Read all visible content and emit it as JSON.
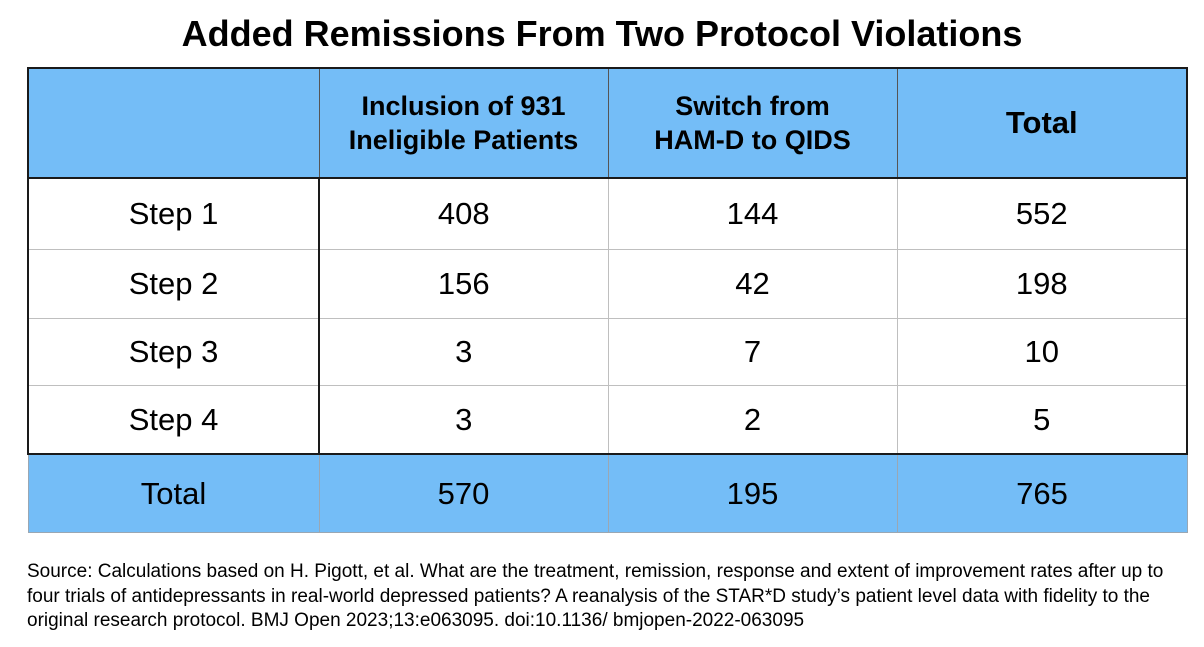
{
  "title": "Added Remissions From Two Protocol Violations",
  "chart_data": {
    "type": "table",
    "columns": [
      "",
      "Inclusion of 931 Ineligible Patients",
      "Switch from HAM-D to QIDS",
      "Total"
    ],
    "header_lines": [
      [],
      [
        "Inclusion of 931",
        "Ineligible Patients"
      ],
      [
        "Switch from",
        "HAM-D to QIDS"
      ],
      [
        "Total"
      ]
    ],
    "rows": [
      {
        "label": "Step 1",
        "values": [
          408,
          144,
          552
        ]
      },
      {
        "label": "Step 2",
        "values": [
          156,
          42,
          198
        ]
      },
      {
        "label": "Step 3",
        "values": [
          3,
          7,
          10
        ]
      },
      {
        "label": "Step 4",
        "values": [
          3,
          2,
          5
        ]
      }
    ],
    "total_row": {
      "label": "Total",
      "values": [
        570,
        195,
        765
      ]
    }
  },
  "source": "Source: Calculations based on H. Pigott, et al. What are the treatment, remission, response and extent of improvement rates after up to four trials of antidepressants in real-world depressed patients? A reanalysis of the STAR*D study’s patient level data with fidelity to the original research protocol. BMJ Open 2023;13:e063095. doi:10.1136/ bmjopen-2022-063095",
  "colors": {
    "header_fill": "#74bdf7",
    "total_fill": "#74bdf7",
    "body_fill": "#ffffff"
  }
}
